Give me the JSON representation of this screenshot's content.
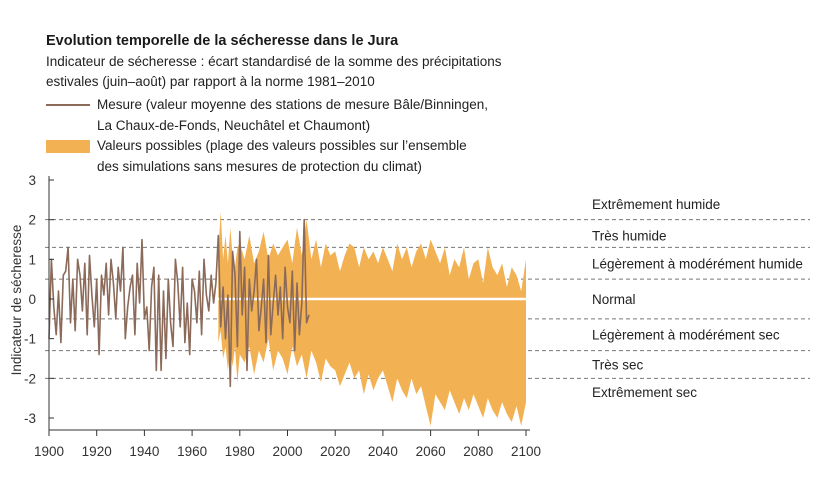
{
  "header": {
    "title": "Evolution temporelle de la sécheresse dans le Jura",
    "subtitle_line1": "Indicateur de sécheresse : écart standardisé de la somme des précipitations",
    "subtitle_line2": "estivales (juin–août) par rapport à la norme 1981–2010"
  },
  "legend": {
    "measure_line1": "Mesure (valeur moyenne des stations de mesure Bâle/Binningen,",
    "measure_line2": "La Chaux-de-Fonds, Neuchâtel et Chaumont)",
    "range_line1": "Valeurs possibles (plage des valeurs possibles sur l’ensemble",
    "range_line2": "des simulations sans mesures de protection du climat)"
  },
  "colors": {
    "measure": "#8b6a5a",
    "range": "#f2b153",
    "median": "#ffffff",
    "threshold": "#777777"
  },
  "chart_data": {
    "type": "area",
    "ylabel": "Indicateur de sécheresse",
    "xlim": [
      1900,
      2100
    ],
    "ylim": [
      -3.2,
      3
    ],
    "x_ticks": [
      1900,
      1920,
      1940,
      1960,
      1980,
      2000,
      2020,
      2040,
      2060,
      2080,
      2100
    ],
    "y_ticks": [
      3,
      2,
      1,
      0,
      -1,
      -2,
      -3
    ],
    "thresholds": [
      2,
      1.3,
      0.5,
      -0.5,
      -1.3,
      -2
    ],
    "categories": [
      {
        "label": "Extrêmement humide",
        "y": 2.4
      },
      {
        "label": "Très humide",
        "y": 1.6
      },
      {
        "label": "Légèrement à modérément humide",
        "y": 0.9
      },
      {
        "label": "Normal",
        "y": 0
      },
      {
        "label": "Légèrement à  modérément sec",
        "y": -0.9
      },
      {
        "label": "Très sec",
        "y": -1.65
      },
      {
        "label": "Extrêmement sec",
        "y": -2.35
      }
    ],
    "series": [
      {
        "name": "Mesure",
        "x": [
          1900,
          1901,
          1902,
          1903,
          1904,
          1905,
          1906,
          1907,
          1908,
          1909,
          1910,
          1911,
          1912,
          1913,
          1914,
          1915,
          1916,
          1917,
          1918,
          1919,
          1920,
          1921,
          1922,
          1923,
          1924,
          1925,
          1926,
          1927,
          1928,
          1929,
          1930,
          1931,
          1932,
          1933,
          1934,
          1935,
          1936,
          1937,
          1938,
          1939,
          1940,
          1941,
          1942,
          1943,
          1944,
          1945,
          1946,
          1947,
          1948,
          1949,
          1950,
          1951,
          1952,
          1953,
          1954,
          1955,
          1956,
          1957,
          1958,
          1959,
          1960,
          1961,
          1962,
          1963,
          1964,
          1965,
          1966,
          1967,
          1968,
          1969,
          1970,
          1971,
          1972,
          1973,
          1974,
          1975,
          1976,
          1977,
          1978,
          1979,
          1980,
          1981,
          1982,
          1983,
          1984,
          1985,
          1986,
          1987,
          1988,
          1989,
          1990,
          1991,
          1992,
          1993,
          1994,
          1995,
          1996,
          1997,
          1998,
          1999,
          2000,
          2001,
          2002,
          2003,
          2004,
          2005,
          2006,
          2007,
          2008,
          2009
        ],
        "values": [
          -1.0,
          1.0,
          -0.2,
          -0.9,
          0.2,
          -1.1,
          0.6,
          0.7,
          1.3,
          -0.6,
          0.5,
          -0.8,
          1.0,
          0.6,
          -0.3,
          0.9,
          -0.9,
          1.1,
          0.1,
          -0.7,
          0.5,
          -1.4,
          0.6,
          0.1,
          0.9,
          -0.4,
          1.0,
          0.4,
          -0.5,
          0.8,
          0.2,
          1.3,
          -1.0,
          -0.2,
          0.3,
          0.6,
          -0.9,
          0.9,
          -0.1,
          1.5,
          -0.5,
          -0.2,
          -1.3,
          0.3,
          0.8,
          -1.8,
          0.6,
          -1.8,
          0.2,
          -1.5,
          0.5,
          -0.6,
          -1.2,
          1.0,
          0.4,
          -0.7,
          0.8,
          -1.1,
          -0.1,
          -1.4,
          0.5,
          0.2,
          -0.6,
          0.7,
          -0.9,
          1.0,
          0.1,
          -0.3,
          0.6,
          -0.1,
          0.4,
          1.6,
          -0.7,
          0.3,
          -1.0,
          0.1,
          -2.2,
          1.2,
          0.6,
          -1.2,
          1.7,
          -0.4,
          0.8,
          -1.8,
          0.5,
          -0.3,
          0.2,
          1.0,
          -0.8,
          -0.2,
          0.5,
          -1.1,
          1.1,
          -0.9,
          -0.1,
          0.6,
          -0.4,
          0.3,
          -1.0,
          0.8,
          -0.2,
          -0.6,
          0.7,
          -1.3,
          0.4,
          -0.9,
          -0.1,
          2.0,
          -0.6,
          -0.4
        ]
      },
      {
        "name": "Valeurs possibles",
        "x": [
          1971,
          1972,
          1973,
          1974,
          1975,
          1976,
          1977,
          1978,
          1979,
          1980,
          1982,
          1984,
          1986,
          1988,
          1990,
          1992,
          1994,
          1996,
          1998,
          2000,
          2002,
          2004,
          2006,
          2008,
          2010,
          2012,
          2014,
          2016,
          2018,
          2020,
          2022,
          2024,
          2026,
          2028,
          2030,
          2032,
          2034,
          2036,
          2038,
          2040,
          2042,
          2044,
          2046,
          2048,
          2050,
          2052,
          2054,
          2056,
          2058,
          2060,
          2062,
          2064,
          2066,
          2068,
          2070,
          2072,
          2074,
          2076,
          2078,
          2080,
          2082,
          2084,
          2086,
          2088,
          2090,
          2092,
          2094,
          2096,
          2098,
          2100
        ],
        "upper": [
          1.2,
          2.2,
          1.0,
          1.6,
          0.9,
          1.8,
          1.1,
          0.8,
          1.3,
          1.4,
          1.0,
          1.6,
          0.9,
          1.2,
          1.7,
          1.0,
          1.4,
          1.1,
          1.3,
          1.5,
          0.9,
          1.8,
          1.1,
          2.0,
          1.0,
          1.5,
          0.8,
          1.4,
          1.1,
          1.2,
          0.7,
          1.1,
          1.4,
          1.3,
          0.8,
          1.3,
          1.0,
          1.2,
          0.9,
          1.3,
          1.0,
          0.7,
          1.4,
          1.0,
          1.3,
          0.8,
          1.2,
          1.4,
          1.0,
          1.5,
          1.2,
          0.9,
          1.3,
          0.6,
          1.0,
          0.8,
          1.3,
          0.5,
          0.9,
          1.0,
          0.4,
          1.3,
          0.8,
          0.6,
          0.9,
          0.3,
          0.8,
          0.6,
          0.2,
          1.0
        ],
        "lower": [
          -1.1,
          -0.8,
          -1.5,
          -1.2,
          -1.8,
          -1.3,
          -1.7,
          -1.2,
          -2.1,
          -1.4,
          -1.6,
          -1.2,
          -1.9,
          -1.3,
          -1.6,
          -1.0,
          -1.8,
          -1.3,
          -1.5,
          -1.9,
          -1.2,
          -1.7,
          -1.4,
          -2.0,
          -1.3,
          -1.6,
          -2.1,
          -1.5,
          -1.7,
          -1.8,
          -2.2,
          -1.9,
          -1.6,
          -2.0,
          -1.8,
          -2.4,
          -1.9,
          -2.3,
          -2.0,
          -1.8,
          -2.2,
          -2.6,
          -2.0,
          -2.3,
          -2.5,
          -2.0,
          -2.4,
          -2.2,
          -2.7,
          -3.2,
          -2.4,
          -2.6,
          -2.8,
          -2.3,
          -2.6,
          -2.9,
          -2.5,
          -2.8,
          -2.4,
          -2.7,
          -3.0,
          -2.5,
          -2.8,
          -3.0,
          -2.6,
          -2.9,
          -3.1,
          -2.7,
          -3.2,
          -2.6
        ]
      }
    ],
    "median": {
      "x": [
        1971,
        2100
      ],
      "y": [
        0,
        0
      ]
    }
  }
}
